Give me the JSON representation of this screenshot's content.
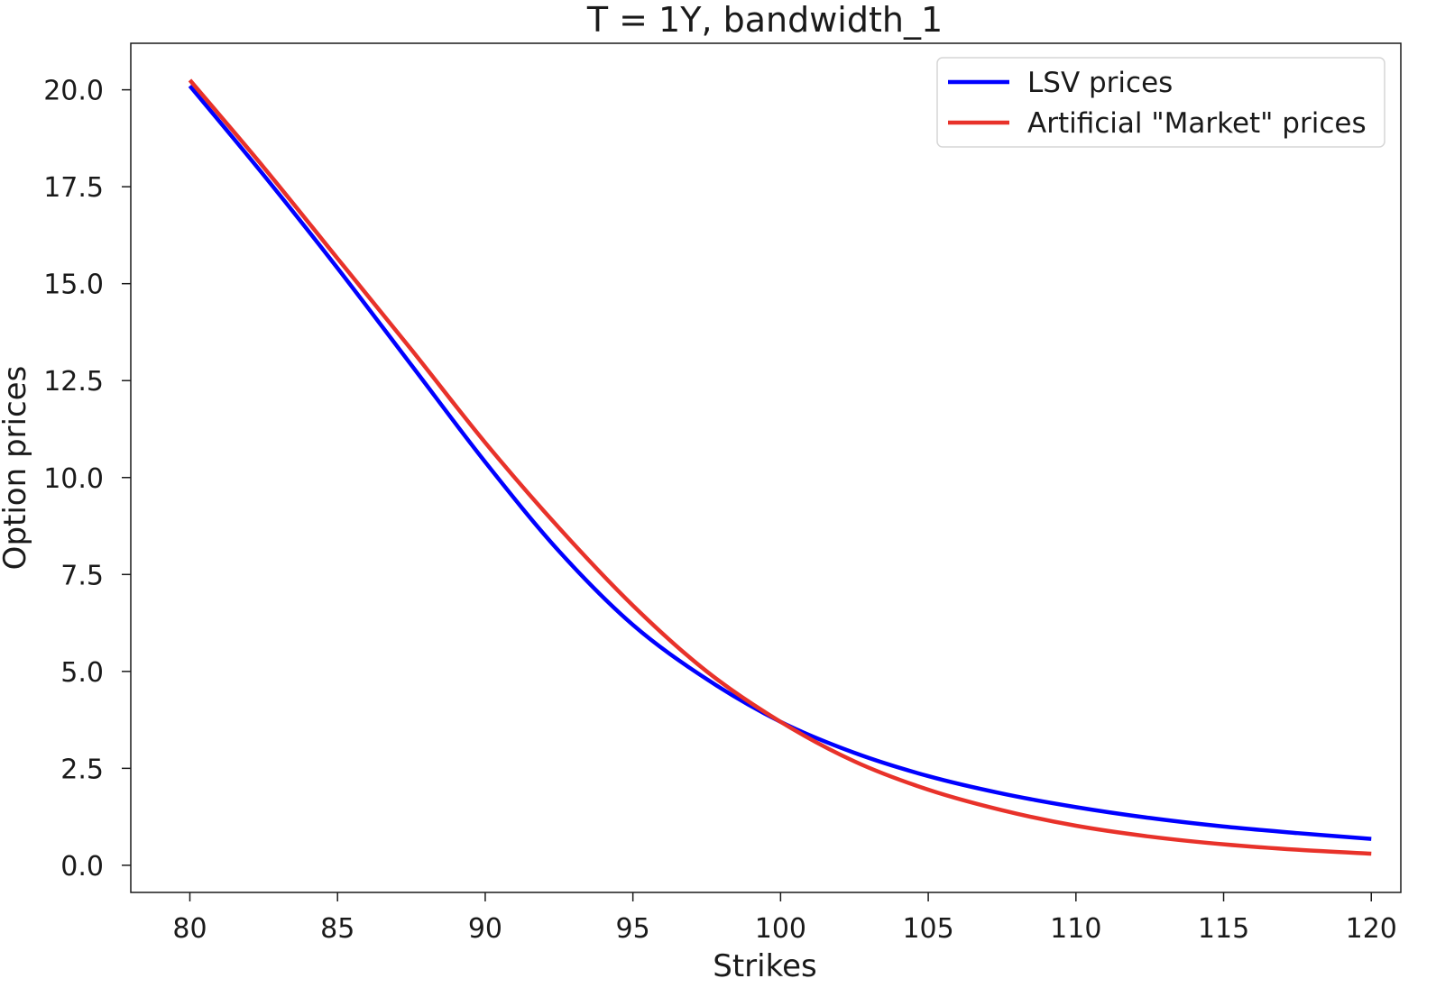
{
  "chart_data": {
    "type": "line",
    "title": "T = 1Y, bandwidth_1",
    "xlabel": "Strikes",
    "ylabel": "Option prices",
    "xlim": [
      78,
      121
    ],
    "ylim": [
      -0.7,
      21.2
    ],
    "xticks": [
      80,
      85,
      90,
      95,
      100,
      105,
      110,
      115,
      120
    ],
    "xtick_labels": [
      "80",
      "85",
      "90",
      "95",
      "100",
      "105",
      "110",
      "115",
      "120"
    ],
    "yticks": [
      0,
      2.5,
      5,
      7.5,
      10,
      12.5,
      15,
      17.5,
      20
    ],
    "ytick_labels": [
      "0.0",
      "2.5",
      "5.0",
      "7.5",
      "10.0",
      "12.5",
      "15.0",
      "17.5",
      "20.0"
    ],
    "grid": false,
    "legend_position": "top-right",
    "x": [
      80,
      82.5,
      85,
      87.5,
      90,
      92.5,
      95,
      97.5,
      100,
      102.5,
      105,
      107.5,
      110,
      112.5,
      115,
      117.5,
      120
    ],
    "series": [
      {
        "name": "LSV prices",
        "color": "#0000ff",
        "values": [
          20.1,
          17.8,
          15.4,
          12.9,
          10.4,
          8.1,
          6.2,
          4.8,
          3.7,
          2.9,
          2.3,
          1.85,
          1.5,
          1.22,
          1.0,
          0.83,
          0.68
        ]
      },
      {
        "name": "Artificial \"Market\" prices",
        "color": "#e8322a",
        "values": [
          20.25,
          18.0,
          15.65,
          13.3,
          10.9,
          8.7,
          6.7,
          5.0,
          3.7,
          2.68,
          1.95,
          1.42,
          1.02,
          0.74,
          0.54,
          0.4,
          0.3
        ]
      }
    ]
  }
}
